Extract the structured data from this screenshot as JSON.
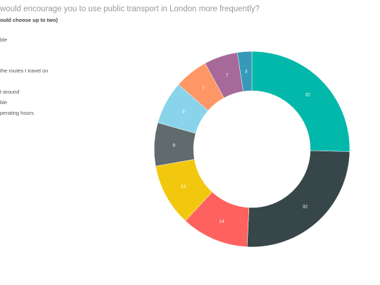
{
  "chart_data": {
    "type": "pie",
    "subtype": "donut",
    "title": "would encourage you to use public transport in London more frequently?",
    "subtitle": "ould choose up to two)",
    "legend_position": "left",
    "legend": [
      "ble",
      "the routes I travel on",
      "t around",
      "ble",
      "perating hours"
    ],
    "slices": [
      {
        "value": 32,
        "label": "32",
        "color": "#01b8aa"
      },
      {
        "value": 32,
        "label": "32",
        "color": "#374649"
      },
      {
        "value": 14,
        "label": "14",
        "color": "#fd625e"
      },
      {
        "value": 13,
        "label": "13",
        "color": "#f2c80f"
      },
      {
        "value": 9,
        "label": "9",
        "color": "#5f6b6d"
      },
      {
        "value": 9,
        "label": "9",
        "color": "#8ad4eb"
      },
      {
        "value": 7,
        "label": "7",
        "color": "#fe9666"
      },
      {
        "value": 7,
        "label": "7",
        "color": "#a66999"
      },
      {
        "value": 3,
        "label": "3",
        "color": "#3599b8"
      }
    ]
  }
}
